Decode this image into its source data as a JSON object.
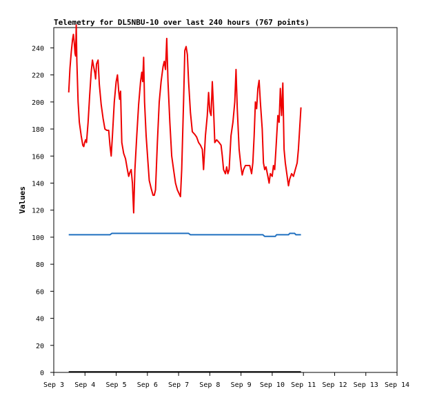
{
  "chart_data": {
    "type": "line",
    "title": "Telemetry for DL5NBU-10 over last 240 hours (767 points)",
    "xlabel": "",
    "ylabel": "Values",
    "xlim": [
      0,
      11
    ],
    "ylim": [
      0,
      255
    ],
    "x_ticks": [
      {
        "x": 0,
        "label": "Sep 3"
      },
      {
        "x": 1,
        "label": "Sep 4"
      },
      {
        "x": 2,
        "label": "Sep 5"
      },
      {
        "x": 3,
        "label": "Sep 6"
      },
      {
        "x": 4,
        "label": "Sep 7"
      },
      {
        "x": 5,
        "label": "Sep 8"
      },
      {
        "x": 6,
        "label": "Sep 9"
      },
      {
        "x": 7,
        "label": "Sep 10"
      },
      {
        "x": 8,
        "label": "Sep 11"
      },
      {
        "x": 9,
        "label": "Sep 12"
      },
      {
        "x": 10,
        "label": "Sep 13"
      },
      {
        "x": 11,
        "label": "Sep 14"
      }
    ],
    "y_ticks": [
      0,
      20,
      40,
      60,
      80,
      100,
      120,
      140,
      160,
      180,
      200,
      220,
      240
    ],
    "grid": false,
    "colors": {
      "red_series": "#ee0000",
      "blue_series": "#1f6fbf",
      "black_series": "#000000"
    },
    "series": [
      {
        "color": "#ee0000",
        "points": [
          [
            0.48,
            207
          ],
          [
            0.52,
            225
          ],
          [
            0.56,
            237
          ],
          [
            0.6,
            246
          ],
          [
            0.63,
            250
          ],
          [
            0.66,
            243
          ],
          [
            0.68,
            236
          ],
          [
            0.7,
            234
          ],
          [
            0.72,
            257
          ],
          [
            0.74,
            230
          ],
          [
            0.78,
            200
          ],
          [
            0.82,
            185
          ],
          [
            0.88,
            175
          ],
          [
            0.93,
            168
          ],
          [
            0.96,
            167
          ],
          [
            0.99,
            170
          ],
          [
            1.02,
            172
          ],
          [
            1.05,
            170
          ],
          [
            1.1,
            185
          ],
          [
            1.15,
            205
          ],
          [
            1.2,
            222
          ],
          [
            1.24,
            231
          ],
          [
            1.28,
            226
          ],
          [
            1.32,
            221
          ],
          [
            1.34,
            217
          ],
          [
            1.37,
            228
          ],
          [
            1.42,
            231
          ],
          [
            1.46,
            213
          ],
          [
            1.52,
            198
          ],
          [
            1.58,
            188
          ],
          [
            1.64,
            180
          ],
          [
            1.7,
            179
          ],
          [
            1.76,
            179
          ],
          [
            1.8,
            168
          ],
          [
            1.84,
            160
          ],
          [
            1.88,
            175
          ],
          [
            1.94,
            200
          ],
          [
            2.0,
            215
          ],
          [
            2.04,
            220
          ],
          [
            2.08,
            208
          ],
          [
            2.11,
            202
          ],
          [
            2.14,
            208
          ],
          [
            2.18,
            170
          ],
          [
            2.24,
            162
          ],
          [
            2.3,
            158
          ],
          [
            2.36,
            150
          ],
          [
            2.4,
            145
          ],
          [
            2.44,
            148
          ],
          [
            2.48,
            150
          ],
          [
            2.52,
            140
          ],
          [
            2.56,
            118
          ],
          [
            2.6,
            150
          ],
          [
            2.66,
            175
          ],
          [
            2.72,
            198
          ],
          [
            2.78,
            215
          ],
          [
            2.82,
            222
          ],
          [
            2.85,
            215
          ],
          [
            2.88,
            233
          ],
          [
            2.91,
            200
          ],
          [
            2.96,
            175
          ],
          [
            3.02,
            155
          ],
          [
            3.06,
            142
          ],
          [
            3.12,
            136
          ],
          [
            3.18,
            131
          ],
          [
            3.22,
            131
          ],
          [
            3.26,
            135
          ],
          [
            3.32,
            170
          ],
          [
            3.38,
            200
          ],
          [
            3.44,
            215
          ],
          [
            3.5,
            226
          ],
          [
            3.54,
            230
          ],
          [
            3.58,
            224
          ],
          [
            3.62,
            247
          ],
          [
            3.66,
            215
          ],
          [
            3.72,
            185
          ],
          [
            3.78,
            160
          ],
          [
            3.84,
            150
          ],
          [
            3.9,
            140
          ],
          [
            3.96,
            135
          ],
          [
            4.02,
            132
          ],
          [
            4.06,
            130
          ],
          [
            4.1,
            150
          ],
          [
            4.16,
            200
          ],
          [
            4.2,
            238
          ],
          [
            4.24,
            241
          ],
          [
            4.28,
            235
          ],
          [
            4.32,
            215
          ],
          [
            4.38,
            192
          ],
          [
            4.44,
            178
          ],
          [
            4.52,
            176
          ],
          [
            4.58,
            174
          ],
          [
            4.64,
            170
          ],
          [
            4.7,
            168
          ],
          [
            4.76,
            165
          ],
          [
            4.8,
            150
          ],
          [
            4.86,
            175
          ],
          [
            4.92,
            190
          ],
          [
            4.96,
            207
          ],
          [
            5.0,
            193
          ],
          [
            5.04,
            190
          ],
          [
            5.08,
            215
          ],
          [
            5.12,
            195
          ],
          [
            5.16,
            170
          ],
          [
            5.22,
            172
          ],
          [
            5.3,
            170
          ],
          [
            5.36,
            168
          ],
          [
            5.4,
            160
          ],
          [
            5.44,
            150
          ],
          [
            5.5,
            147
          ],
          [
            5.54,
            152
          ],
          [
            5.58,
            147
          ],
          [
            5.62,
            150
          ],
          [
            5.68,
            175
          ],
          [
            5.74,
            185
          ],
          [
            5.8,
            200
          ],
          [
            5.84,
            224
          ],
          [
            5.88,
            195
          ],
          [
            5.94,
            165
          ],
          [
            6.0,
            152
          ],
          [
            6.04,
            146
          ],
          [
            6.08,
            150
          ],
          [
            6.14,
            153
          ],
          [
            6.22,
            153
          ],
          [
            6.28,
            153
          ],
          [
            6.34,
            147
          ],
          [
            6.38,
            155
          ],
          [
            6.42,
            175
          ],
          [
            6.46,
            200
          ],
          [
            6.5,
            195
          ],
          [
            6.54,
            210
          ],
          [
            6.58,
            216
          ],
          [
            6.62,
            200
          ],
          [
            6.68,
            180
          ],
          [
            6.72,
            155
          ],
          [
            6.76,
            150
          ],
          [
            6.8,
            152
          ],
          [
            6.86,
            145
          ],
          [
            6.9,
            140
          ],
          [
            6.94,
            147
          ],
          [
            7.0,
            145
          ],
          [
            7.04,
            153
          ],
          [
            7.08,
            150
          ],
          [
            7.12,
            165
          ],
          [
            7.18,
            190
          ],
          [
            7.22,
            185
          ],
          [
            7.26,
            210
          ],
          [
            7.3,
            190
          ],
          [
            7.34,
            214
          ],
          [
            7.38,
            165
          ],
          [
            7.42,
            155
          ],
          [
            7.48,
            145
          ],
          [
            7.52,
            138
          ],
          [
            7.56,
            143
          ],
          [
            7.62,
            147
          ],
          [
            7.68,
            145
          ],
          [
            7.74,
            150
          ],
          [
            7.8,
            155
          ],
          [
            7.84,
            165
          ],
          [
            7.88,
            180
          ],
          [
            7.92,
            196
          ]
        ]
      },
      {
        "color": "#1f6fbf",
        "points": [
          [
            0.48,
            101.8
          ],
          [
            1.8,
            101.8
          ],
          [
            1.86,
            102.8
          ],
          [
            4.32,
            102.8
          ],
          [
            4.38,
            101.8
          ],
          [
            6.7,
            101.8
          ],
          [
            6.76,
            100.6
          ],
          [
            7.1,
            100.6
          ],
          [
            7.14,
            101.8
          ],
          [
            7.52,
            101.8
          ],
          [
            7.56,
            102.8
          ],
          [
            7.72,
            102.8
          ],
          [
            7.76,
            101.8
          ],
          [
            7.92,
            101.8
          ]
        ]
      },
      {
        "color": "#000000",
        "points": [
          [
            0.48,
            0.4
          ],
          [
            7.92,
            0.4
          ]
        ]
      }
    ]
  }
}
